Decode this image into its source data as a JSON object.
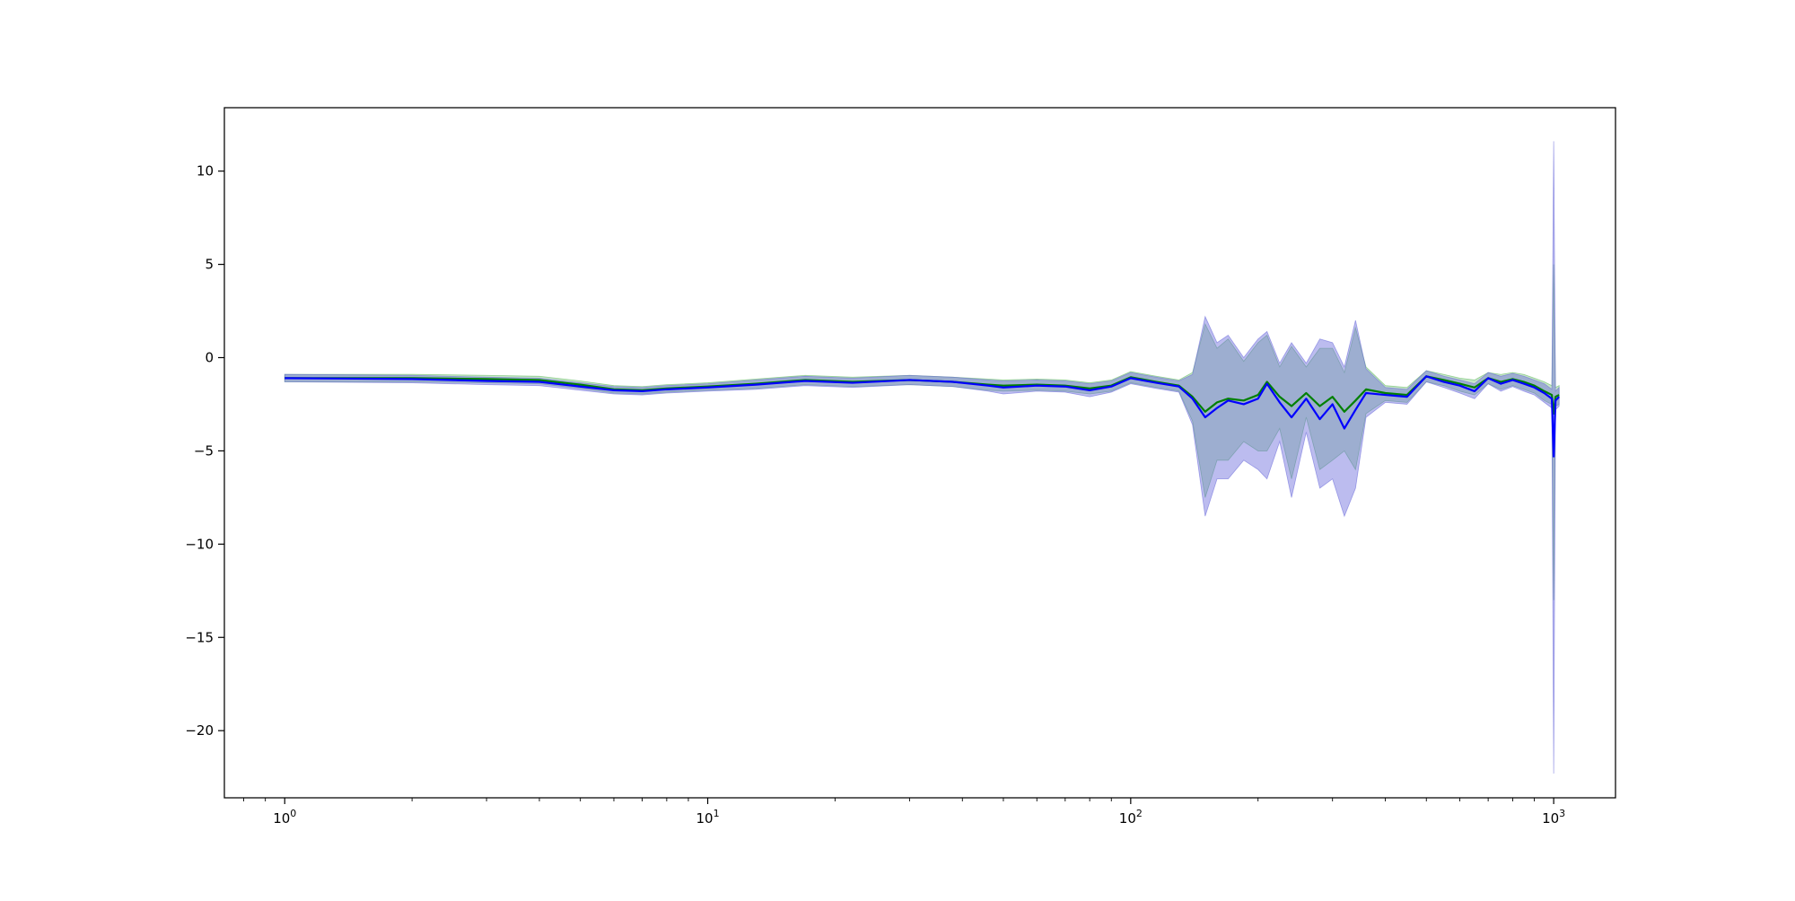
{
  "chart_data": {
    "type": "line",
    "title": "",
    "xlabel": "",
    "ylabel": "",
    "xscale": "log",
    "xlim": [
      0.72,
      1400
    ],
    "ylim": [
      -23.6,
      13.4
    ],
    "grid": false,
    "legend": "none",
    "x_ticks": [
      {
        "value": 1,
        "base": "10",
        "exp": "0"
      },
      {
        "value": 10,
        "base": "10",
        "exp": "1"
      },
      {
        "value": 100,
        "base": "10",
        "exp": "2"
      },
      {
        "value": 1000,
        "base": "10",
        "exp": "3"
      }
    ],
    "y_ticks": [
      {
        "value": 10,
        "label": "10"
      },
      {
        "value": 5,
        "label": "5"
      },
      {
        "value": 0,
        "label": "0"
      },
      {
        "value": -5,
        "label": "−5"
      },
      {
        "value": -10,
        "label": "−10"
      },
      {
        "value": -15,
        "label": "−15"
      },
      {
        "value": -20,
        "label": "−20"
      }
    ],
    "series": [
      {
        "color": "#008000",
        "band_color": "#5cb85c",
        "band_opacity": 0.35,
        "points": [
          [
            1,
            -1.1,
            -0.9,
            -1.3
          ],
          [
            2,
            -1.1,
            -0.9,
            -1.3
          ],
          [
            3,
            -1.15,
            -0.95,
            -1.35
          ],
          [
            4,
            -1.2,
            -1.0,
            -1.4
          ],
          [
            5,
            -1.45,
            -1.25,
            -1.65
          ],
          [
            6,
            -1.7,
            -1.5,
            -1.9
          ],
          [
            7,
            -1.75,
            -1.55,
            -1.95
          ],
          [
            8,
            -1.65,
            -1.45,
            -1.85
          ],
          [
            10,
            -1.55,
            -1.35,
            -1.75
          ],
          [
            13,
            -1.4,
            -1.15,
            -1.65
          ],
          [
            17,
            -1.2,
            -0.95,
            -1.45
          ],
          [
            22,
            -1.3,
            -1.05,
            -1.55
          ],
          [
            30,
            -1.2,
            -0.95,
            -1.45
          ],
          [
            38,
            -1.3,
            -1.05,
            -1.55
          ],
          [
            46,
            -1.45,
            -1.15,
            -1.75
          ],
          [
            50,
            -1.5,
            -1.2,
            -1.8
          ],
          [
            60,
            -1.45,
            -1.15,
            -1.75
          ],
          [
            70,
            -1.5,
            -1.2,
            -1.8
          ],
          [
            80,
            -1.65,
            -1.35,
            -1.95
          ],
          [
            90,
            -1.5,
            -1.2,
            -1.8
          ],
          [
            100,
            -1.05,
            -0.75,
            -1.35
          ],
          [
            115,
            -1.3,
            -1.0,
            -1.6
          ],
          [
            130,
            -1.5,
            -1.2,
            -1.8
          ],
          [
            140,
            -2.1,
            -0.8,
            -3.4
          ],
          [
            150,
            -2.9,
            1.8,
            -7.5
          ],
          [
            160,
            -2.4,
            0.5,
            -5.5
          ],
          [
            170,
            -2.2,
            1.0,
            -5.5
          ],
          [
            185,
            -2.3,
            -0.2,
            -4.5
          ],
          [
            200,
            -2.0,
            0.8,
            -5.0
          ],
          [
            210,
            -1.3,
            1.2,
            -5.0
          ],
          [
            225,
            -2.1,
            -0.5,
            -3.8
          ],
          [
            240,
            -2.6,
            0.6,
            -6.5
          ],
          [
            260,
            -1.9,
            -0.5,
            -3.2
          ],
          [
            280,
            -2.6,
            0.5,
            -6.0
          ],
          [
            300,
            -2.1,
            0.5,
            -5.5
          ],
          [
            320,
            -2.9,
            -0.8,
            -5.0
          ],
          [
            340,
            -2.3,
            1.6,
            -6.0
          ],
          [
            360,
            -1.7,
            -0.5,
            -3.0
          ],
          [
            400,
            -1.9,
            -1.5,
            -2.3
          ],
          [
            450,
            -2.0,
            -1.6,
            -2.4
          ],
          [
            500,
            -1.0,
            -0.7,
            -1.3
          ],
          [
            550,
            -1.2,
            -0.9,
            -1.5
          ],
          [
            600,
            -1.4,
            -1.1,
            -1.8
          ],
          [
            650,
            -1.6,
            -1.2,
            -2.0
          ],
          [
            700,
            -1.1,
            -0.8,
            -1.4
          ],
          [
            750,
            -1.3,
            -0.9,
            -1.7
          ],
          [
            800,
            -1.15,
            -0.8,
            -1.5
          ],
          [
            850,
            -1.3,
            -0.9,
            -1.7
          ],
          [
            900,
            -1.5,
            -1.1,
            -1.9
          ],
          [
            950,
            -1.8,
            -1.3,
            -2.3
          ],
          [
            990,
            -2.0,
            -1.5,
            -2.5
          ],
          [
            1000,
            -3.0,
            5.0,
            -13.0
          ],
          [
            1010,
            -2.1,
            -1.6,
            -2.6
          ],
          [
            1030,
            -2.0,
            -1.5,
            -2.5
          ]
        ]
      },
      {
        "color": "#0000ff",
        "band_color": "#6b6bdb",
        "band_opacity": 0.45,
        "points": [
          [
            1,
            -1.1,
            -0.9,
            -1.3
          ],
          [
            2,
            -1.15,
            -0.95,
            -1.35
          ],
          [
            3,
            -1.25,
            -1.05,
            -1.45
          ],
          [
            4,
            -1.3,
            -1.1,
            -1.5
          ],
          [
            5,
            -1.55,
            -1.35,
            -1.75
          ],
          [
            6,
            -1.75,
            -1.55,
            -1.95
          ],
          [
            7,
            -1.8,
            -1.6,
            -2.0
          ],
          [
            8,
            -1.7,
            -1.5,
            -1.9
          ],
          [
            10,
            -1.6,
            -1.4,
            -1.8
          ],
          [
            13,
            -1.45,
            -1.2,
            -1.7
          ],
          [
            17,
            -1.25,
            -1.0,
            -1.5
          ],
          [
            22,
            -1.35,
            -1.1,
            -1.6
          ],
          [
            30,
            -1.2,
            -0.95,
            -1.45
          ],
          [
            38,
            -1.3,
            -1.05,
            -1.55
          ],
          [
            46,
            -1.5,
            -1.2,
            -1.8
          ],
          [
            50,
            -1.6,
            -1.25,
            -1.95
          ],
          [
            60,
            -1.5,
            -1.2,
            -1.8
          ],
          [
            70,
            -1.55,
            -1.25,
            -1.85
          ],
          [
            80,
            -1.75,
            -1.4,
            -2.1
          ],
          [
            90,
            -1.55,
            -1.25,
            -1.85
          ],
          [
            100,
            -1.1,
            -0.8,
            -1.4
          ],
          [
            115,
            -1.35,
            -1.05,
            -1.65
          ],
          [
            130,
            -1.55,
            -1.25,
            -1.85
          ],
          [
            140,
            -2.2,
            -0.9,
            -3.6
          ],
          [
            150,
            -3.2,
            2.2,
            -8.5
          ],
          [
            160,
            -2.7,
            0.8,
            -6.5
          ],
          [
            170,
            -2.3,
            1.2,
            -6.5
          ],
          [
            185,
            -2.5,
            0.0,
            -5.5
          ],
          [
            200,
            -2.2,
            1.0,
            -6.0
          ],
          [
            210,
            -1.4,
            1.4,
            -6.5
          ],
          [
            225,
            -2.4,
            -0.3,
            -4.5
          ],
          [
            240,
            -3.2,
            0.8,
            -7.5
          ],
          [
            260,
            -2.2,
            -0.3,
            -4.0
          ],
          [
            280,
            -3.3,
            1.0,
            -7.0
          ],
          [
            300,
            -2.5,
            0.8,
            -6.5
          ],
          [
            320,
            -3.8,
            -0.5,
            -8.5
          ],
          [
            340,
            -2.8,
            2.0,
            -7.0
          ],
          [
            360,
            -1.9,
            -0.6,
            -3.2
          ],
          [
            400,
            -2.0,
            -1.6,
            -2.4
          ],
          [
            450,
            -2.1,
            -1.7,
            -2.5
          ],
          [
            500,
            -1.0,
            -0.7,
            -1.3
          ],
          [
            550,
            -1.3,
            -1.0,
            -1.6
          ],
          [
            600,
            -1.5,
            -1.2,
            -1.9
          ],
          [
            650,
            -1.8,
            -1.4,
            -2.2
          ],
          [
            700,
            -1.1,
            -0.8,
            -1.4
          ],
          [
            750,
            -1.4,
            -1.0,
            -1.8
          ],
          [
            800,
            -1.2,
            -0.85,
            -1.55
          ],
          [
            850,
            -1.4,
            -1.0,
            -1.8
          ],
          [
            900,
            -1.6,
            -1.2,
            -2.0
          ],
          [
            950,
            -1.9,
            -1.4,
            -2.4
          ],
          [
            990,
            -2.2,
            -1.7,
            -2.7
          ],
          [
            1000,
            -5.3,
            11.6,
            -22.3
          ],
          [
            1010,
            -2.3,
            -1.8,
            -2.8
          ],
          [
            1030,
            -2.1,
            -1.6,
            -2.6
          ]
        ]
      }
    ]
  }
}
